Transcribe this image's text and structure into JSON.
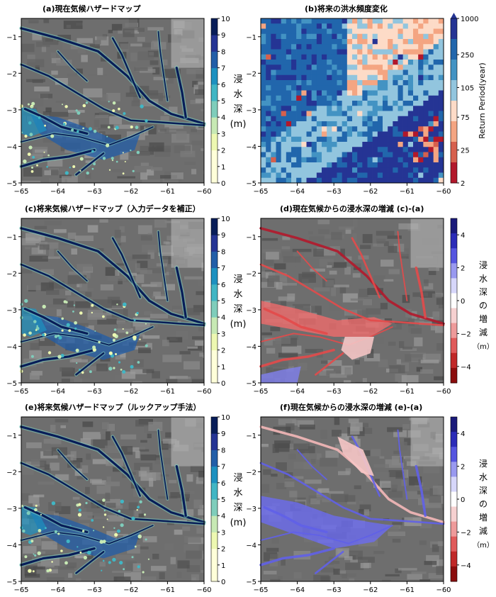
{
  "chart_data": [
    {
      "id": "a",
      "type": "heatmap",
      "title": "(a)現在気候ハザードマップ",
      "xlim": [
        -65,
        -60
      ],
      "ylim": [
        -5,
        -0.5
      ],
      "xticks": [
        "−65",
        "−64",
        "−63",
        "−62",
        "−61",
        "−60"
      ],
      "yticks": [
        "−1",
        "−2",
        "−3",
        "−4",
        "−5"
      ],
      "colorbar": {
        "label": [
          "浸",
          "水",
          "深",
          "(m)"
        ],
        "ticks": [
          "0",
          "1",
          "2",
          "3",
          "4",
          "5",
          "6",
          "7",
          "8",
          "9",
          "10"
        ],
        "colors": [
          "#ffffd9",
          "#edf8b1",
          "#c7e9b4",
          "#7fcdbb",
          "#41b6c4",
          "#1d91c0",
          "#225ea8",
          "#253494",
          "#081d58"
        ]
      }
    },
    {
      "id": "b",
      "type": "heatmap",
      "title": "(b)将来の洪水頻度変化",
      "xlim": [
        -65,
        -60
      ],
      "ylim": [
        -5,
        -0.5
      ],
      "xticks": [
        "−65",
        "−64",
        "−63",
        "−62",
        "−61",
        "−60"
      ],
      "yticks": [
        "−1",
        "−2",
        "−3",
        "−4",
        "−5"
      ],
      "colorbar": {
        "label": "Return Period(year)",
        "ticks": [
          "1000",
          "250",
          "105",
          "75",
          "25",
          "2"
        ],
        "colors": [
          "#b2182b",
          "#d6604d",
          "#f4a582",
          "#fddbc7",
          "#92c5de",
          "#4393c3",
          "#2166ac",
          "#253494"
        ]
      }
    },
    {
      "id": "c",
      "type": "heatmap",
      "title": "(c)将来気候ハザードマップ（入力データを補正）",
      "xlim": [
        -65,
        -60
      ],
      "ylim": [
        -5,
        -0.5
      ],
      "xticks": [
        "−65",
        "−64",
        "−63",
        "−62",
        "−61",
        "−60"
      ],
      "yticks": [
        "−1",
        "−2",
        "−3",
        "−4",
        "−5"
      ],
      "colorbar": {
        "label": [
          "浸",
          "水",
          "深",
          "(m)"
        ],
        "ticks": [
          "0",
          "1",
          "2",
          "3",
          "4",
          "5",
          "6",
          "7",
          "8",
          "9",
          "10"
        ]
      }
    },
    {
      "id": "d",
      "type": "heatmap",
      "title": "(d)現在気候からの浸水深の増減 (c)-(a)",
      "xlim": [
        -65,
        -60
      ],
      "ylim": [
        -5,
        -0.5
      ],
      "xticks": [
        "−65",
        "−64",
        "−63",
        "−62",
        "−61",
        "−60"
      ],
      "yticks": [
        "−1",
        "−2",
        "−3",
        "−4",
        "−5"
      ],
      "colorbar": {
        "label": [
          "浸",
          "水",
          "深",
          "の",
          "増",
          "減",
          "（m）"
        ],
        "ticks": [
          "4",
          "2",
          "0",
          "−2",
          "−4"
        ]
      }
    },
    {
      "id": "e",
      "type": "heatmap",
      "title": "(e)将来気候ハザードマップ（ルックアップ手法）",
      "xlim": [
        -65,
        -60
      ],
      "ylim": [
        -5,
        -0.5
      ],
      "xticks": [
        "−65",
        "−64",
        "−63",
        "−62",
        "−61",
        "−60"
      ],
      "yticks": [
        "−1",
        "−2",
        "−3",
        "−4",
        "−5"
      ],
      "colorbar": {
        "label": [
          "浸",
          "水",
          "深",
          "(m)"
        ],
        "ticks": [
          "0",
          "1",
          "2",
          "3",
          "4",
          "5",
          "6",
          "7",
          "8",
          "9",
          "10"
        ]
      }
    },
    {
      "id": "f",
      "type": "heatmap",
      "title": "(f)現在気候からの浸水深の増減 (e)-(a)",
      "xlim": [
        -65,
        -60
      ],
      "ylim": [
        -5,
        -0.5
      ],
      "xticks": [
        "−65",
        "−64",
        "−63",
        "−62",
        "−61",
        "−60"
      ],
      "yticks": [
        "−1",
        "−2",
        "−3",
        "−4",
        "−5"
      ],
      "colorbar": {
        "label": [
          "浸",
          "水",
          "深",
          "の",
          "増",
          "減",
          "（m）"
        ],
        "ticks": [
          "4",
          "2",
          "0",
          "−2",
          "−4"
        ]
      }
    }
  ]
}
